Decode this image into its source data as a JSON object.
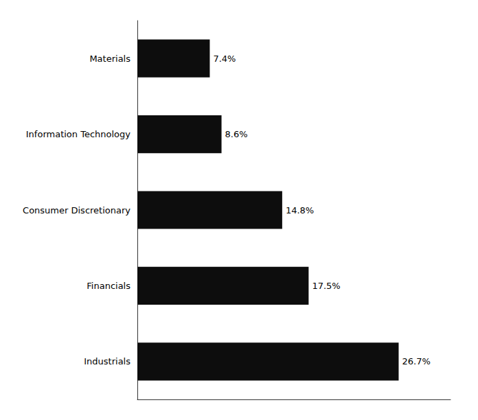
{
  "chart_data": {
    "type": "bar",
    "orientation": "horizontal",
    "categories": [
      "Materials",
      "Information Technology",
      "Consumer Discretionary",
      "Financials",
      "Industrials"
    ],
    "values": [
      7.4,
      8.6,
      14.8,
      17.5,
      26.7
    ],
    "value_labels": [
      "7.4%",
      "8.6%",
      "14.8%",
      "17.5%",
      "26.7%"
    ],
    "data_labels": true,
    "color": "#0d0d0d",
    "xlim": [
      0,
      32
    ],
    "tick_labels": "y",
    "grid": false
  }
}
